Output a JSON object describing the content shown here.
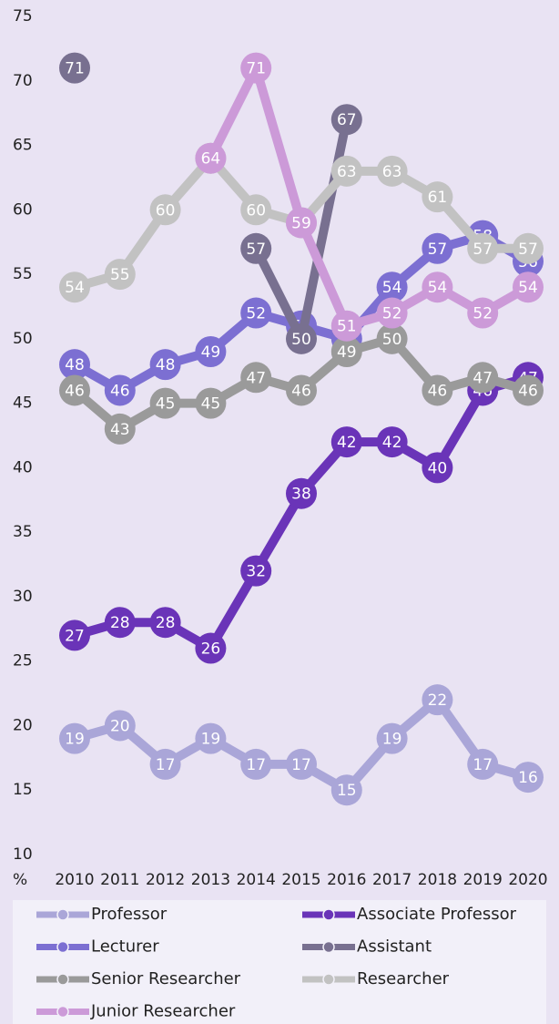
{
  "chart_data": {
    "type": "line",
    "x": [
      2010,
      2011,
      2012,
      2013,
      2014,
      2015,
      2016,
      2017,
      2018,
      2019,
      2020
    ],
    "y_unit": "%",
    "ylim": [
      10,
      75
    ],
    "yticks": [
      10,
      15,
      20,
      25,
      30,
      35,
      40,
      45,
      50,
      55,
      60,
      65,
      70,
      75
    ],
    "legend": "bottom",
    "series": [
      {
        "name": "Professor",
        "color": "#aaa6d8",
        "values": [
          19,
          20,
          17,
          19,
          17,
          17,
          15,
          19,
          22,
          17,
          16
        ]
      },
      {
        "name": "Associate Professor",
        "color": "#6a34b8",
        "values": [
          27,
          28,
          28,
          26,
          32,
          38,
          42,
          42,
          40,
          46,
          47
        ]
      },
      {
        "name": "Lecturer",
        "color": "#7c6fd2",
        "values": [
          48,
          46,
          48,
          49,
          52,
          51,
          50,
          54,
          57,
          58,
          56
        ]
      },
      {
        "name": "Assistant",
        "color": "#787090",
        "values": [
          71,
          null,
          null,
          null,
          57,
          50,
          67,
          null,
          null,
          null,
          null
        ]
      },
      {
        "name": "Senior Researcher",
        "color": "#9a9a9a",
        "values": [
          46,
          43,
          45,
          45,
          47,
          46,
          49,
          50,
          46,
          47,
          46
        ]
      },
      {
        "name": "Researcher",
        "color": "#c2c2c2",
        "values": [
          54,
          55,
          60,
          64,
          60,
          59,
          63,
          63,
          61,
          57,
          57
        ]
      },
      {
        "name": "Junior Researcher",
        "color": "#cc9ad8",
        "values": [
          null,
          null,
          null,
          64,
          71,
          59,
          51,
          52,
          54,
          52,
          54
        ]
      }
    ]
  }
}
